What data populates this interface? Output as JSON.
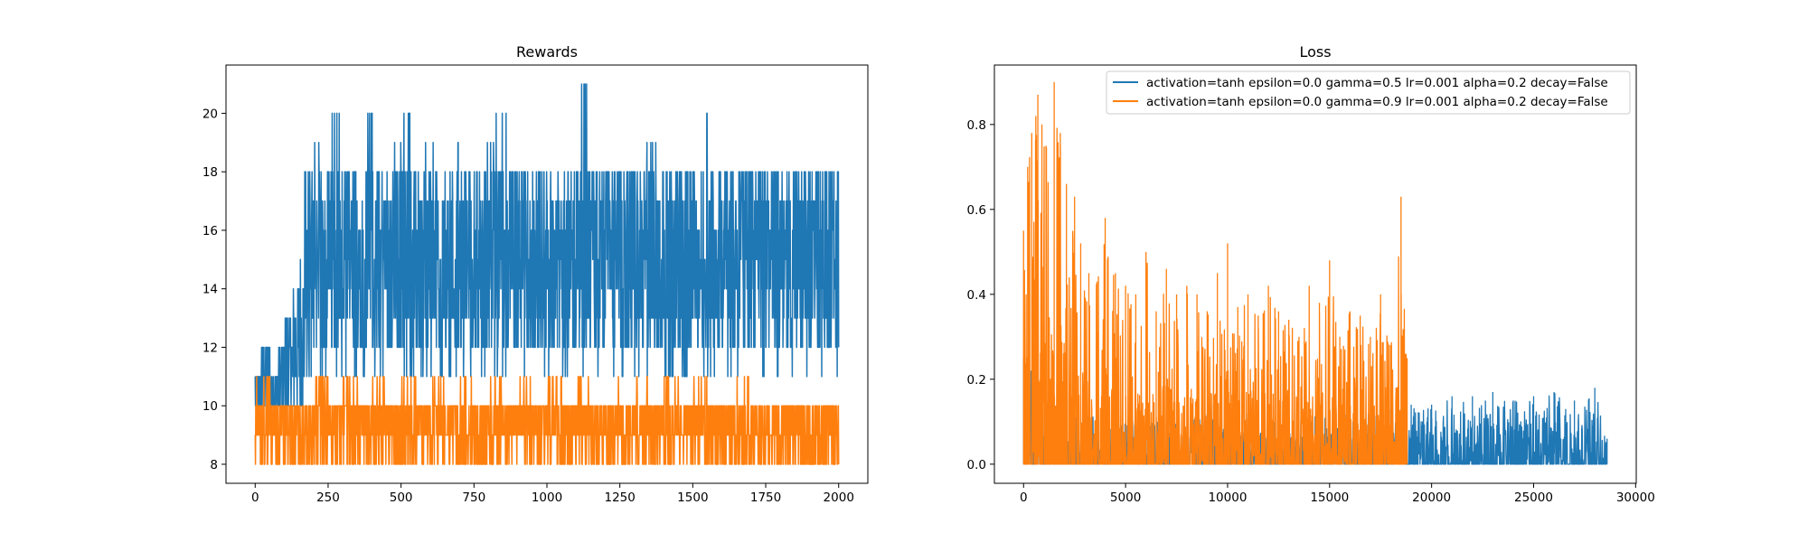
{
  "chart_data": [
    {
      "type": "line",
      "title": "Rewards",
      "xlabel": "",
      "ylabel": "",
      "xlim": [
        -100,
        2100
      ],
      "ylim": [
        7.35,
        21.65
      ],
      "xticks": [
        "0",
        "250",
        "500",
        "750",
        "1000",
        "1250",
        "1500",
        "1750",
        "2000"
      ],
      "yticks": [
        "8",
        "10",
        "12",
        "14",
        "16",
        "18",
        "20"
      ],
      "grid": false,
      "legend": "none",
      "series": [
        {
          "color": "#1f77b4",
          "points": [
            [
              0,
              11
            ],
            [
              20,
              12
            ],
            [
              50,
              11
            ],
            [
              75,
              12
            ],
            [
              100,
              13
            ],
            [
              130,
              14
            ],
            [
              150,
              15
            ],
            [
              170,
              18
            ],
            [
              200,
              19
            ],
            [
              230,
              17
            ],
            [
              260,
              20
            ],
            [
              300,
              18
            ],
            [
              340,
              16
            ],
            [
              380,
              20
            ],
            [
              420,
              15
            ],
            [
              470,
              19
            ],
            [
              500,
              20
            ],
            [
              540,
              18
            ],
            [
              580,
              19
            ],
            [
              620,
              17
            ],
            [
              660,
              19
            ],
            [
              700,
              18
            ],
            [
              740,
              16
            ],
            [
              780,
              19
            ],
            [
              820,
              20
            ],
            [
              860,
              18
            ],
            [
              900,
              17
            ],
            [
              940,
              19
            ],
            [
              980,
              16
            ],
            [
              1020,
              17
            ],
            [
              1060,
              18
            ],
            [
              1104,
              21
            ],
            [
              1140,
              17
            ],
            [
              1180,
              18
            ],
            [
              1220,
              16
            ],
            [
              1260,
              18
            ],
            [
              1300,
              17
            ],
            [
              1340,
              19
            ],
            [
              1380,
              17
            ],
            [
              1420,
              18
            ],
            [
              1460,
              17
            ],
            [
              1500,
              16
            ],
            [
              1528,
              20
            ],
            [
              1560,
              17
            ],
            [
              1600,
              16
            ],
            [
              1640,
              17
            ],
            [
              1680,
              18
            ],
            [
              1720,
              17
            ],
            [
              1760,
              16
            ],
            [
              1800,
              17
            ],
            [
              1840,
              16
            ],
            [
              1880,
              17
            ],
            [
              1920,
              16
            ],
            [
              1950,
              18
            ],
            [
              1980,
              17
            ],
            [
              2000,
              15
            ]
          ],
          "band_note": "rapid oscillation, typically between 12 and 18"
        },
        {
          "color": "#ff7f0e",
          "points": [
            [
              0,
              11
            ],
            [
              50,
              10
            ],
            [
              100,
              10
            ],
            [
              150,
              10
            ],
            [
              200,
              11
            ],
            [
              250,
              10
            ],
            [
              300,
              11
            ],
            [
              350,
              10
            ],
            [
              400,
              11
            ],
            [
              450,
              10
            ],
            [
              500,
              11
            ],
            [
              550,
              10
            ],
            [
              600,
              11
            ],
            [
              650,
              10
            ],
            [
              700,
              11
            ],
            [
              750,
              10
            ],
            [
              800,
              11
            ],
            [
              850,
              10
            ],
            [
              900,
              11
            ],
            [
              950,
              10
            ],
            [
              1000,
              11
            ],
            [
              1050,
              10
            ],
            [
              1100,
              11
            ],
            [
              1150,
              10
            ],
            [
              1200,
              11
            ],
            [
              1250,
              10
            ],
            [
              1300,
              11
            ],
            [
              1350,
              10
            ],
            [
              1400,
              11
            ],
            [
              1450,
              10
            ],
            [
              1500,
              11
            ],
            [
              1550,
              10
            ],
            [
              1600,
              10
            ],
            [
              1650,
              11
            ],
            [
              1700,
              10
            ],
            [
              1750,
              10
            ],
            [
              1800,
              10
            ],
            [
              1850,
              10
            ],
            [
              1900,
              10
            ],
            [
              1950,
              10
            ],
            [
              2000,
              10
            ]
          ],
          "band_note": "rapid oscillation, typically between 8 and 10"
        }
      ]
    },
    {
      "type": "line",
      "title": "Loss",
      "xlabel": "",
      "ylabel": "",
      "xlim": [
        -1430,
        30030
      ],
      "ylim": [
        -0.045,
        0.94
      ],
      "xticks": [
        "0",
        "5000",
        "10000",
        "15000",
        "20000",
        "25000",
        "30000"
      ],
      "yticks": [
        "0.0",
        "0.2",
        "0.4",
        "0.6",
        "0.8"
      ],
      "grid": false,
      "legend": "top-right",
      "series": [
        {
          "name": "activation=tanh epsilon=0.0 gamma=0.5 lr=0.001 alpha=0.2 decay=False",
          "color": "#1f77b4",
          "length": 28600,
          "peaks": [
            [
              0,
              0.25
            ],
            [
              1200,
              0.15
            ],
            [
              2000,
              0.18
            ],
            [
              3000,
              0.12
            ],
            [
              5000,
              0.1
            ],
            [
              7000,
              0.1
            ],
            [
              9000,
              0.12
            ],
            [
              9300,
              0.14
            ],
            [
              11000,
              0.12
            ],
            [
              13000,
              0.12
            ],
            [
              15000,
              0.12
            ],
            [
              17000,
              0.12
            ],
            [
              18000,
              0.13
            ],
            [
              19000,
              0.14
            ],
            [
              20000,
              0.14
            ],
            [
              21000,
              0.16
            ],
            [
              22000,
              0.16
            ],
            [
              23000,
              0.17
            ],
            [
              24000,
              0.15
            ],
            [
              25000,
              0.16
            ],
            [
              26000,
              0.17
            ],
            [
              27000,
              0.15
            ],
            [
              28000,
              0.18
            ],
            [
              28600,
              0.06
            ]
          ]
        },
        {
          "name": "activation=tanh epsilon=0.0 gamma=0.9 lr=0.001 alpha=0.2 decay=False",
          "color": "#ff7f0e",
          "length": 18800,
          "peaks": [
            [
              0,
              0.55
            ],
            [
              200,
              0.7
            ],
            [
              400,
              0.78
            ],
            [
              600,
              0.82
            ],
            [
              700,
              0.87
            ],
            [
              900,
              0.8
            ],
            [
              1100,
              0.75
            ],
            [
              1500,
              0.9
            ],
            [
              1800,
              0.78
            ],
            [
              2100,
              0.66
            ],
            [
              2500,
              0.63
            ],
            [
              2800,
              0.52
            ],
            [
              3200,
              0.45
            ],
            [
              3600,
              0.43
            ],
            [
              4000,
              0.58
            ],
            [
              4500,
              0.45
            ],
            [
              5000,
              0.42
            ],
            [
              5500,
              0.4
            ],
            [
              6000,
              0.5
            ],
            [
              6500,
              0.36
            ],
            [
              7000,
              0.46
            ],
            [
              7500,
              0.4
            ],
            [
              8000,
              0.42
            ],
            [
              8500,
              0.4
            ],
            [
              9000,
              0.36
            ],
            [
              9500,
              0.45
            ],
            [
              10000,
              0.52
            ],
            [
              10500,
              0.37
            ],
            [
              11000,
              0.4
            ],
            [
              11500,
              0.35
            ],
            [
              12000,
              0.42
            ],
            [
              12500,
              0.36
            ],
            [
              13000,
              0.34
            ],
            [
              13500,
              0.3
            ],
            [
              14000,
              0.42
            ],
            [
              14500,
              0.38
            ],
            [
              15000,
              0.48
            ],
            [
              15500,
              0.3
            ],
            [
              16000,
              0.36
            ],
            [
              16500,
              0.35
            ],
            [
              17000,
              0.3
            ],
            [
              17500,
              0.4
            ],
            [
              18000,
              0.28
            ],
            [
              18500,
              0.63
            ],
            [
              18800,
              0.25
            ]
          ]
        }
      ]
    }
  ]
}
